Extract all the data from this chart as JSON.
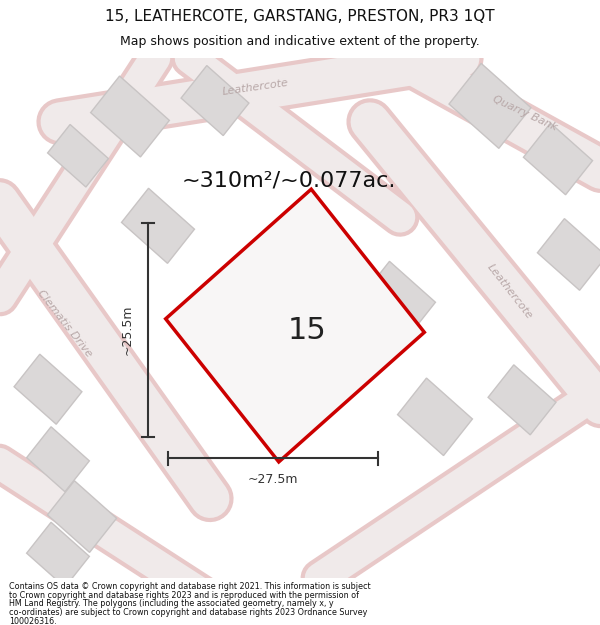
{
  "title_line1": "15, LEATHERCOTE, GARSTANG, PRESTON, PR3 1QT",
  "title_line2": "Map shows position and indicative extent of the property.",
  "area_text": "~310m²/~0.077ac.",
  "label_number": "15",
  "dim_width": "~27.5m",
  "dim_height": "~25.5m",
  "footer_lines": [
    "Contains OS data © Crown copyright and database right 2021. This information is subject",
    "to Crown copyright and database rights 2023 and is reproduced with the permission of",
    "HM Land Registry. The polygons (including the associated geometry, namely x, y",
    "co-ordinates) are subject to Crown copyright and database rights 2023 Ordnance Survey",
    "100026316."
  ],
  "map_bg": "#f2f0f0",
  "road_edge_color": "#e8c8c8",
  "road_fill_color": "#f0eaea",
  "building_color": "#dbd8d8",
  "building_edge": "#c8c4c4",
  "plot_edge_color": "#cc0000",
  "plot_fill_color": "#f8f6f6",
  "dim_color": "#333333",
  "road_label_color": "#b8a8a8",
  "text_color": "#111111"
}
